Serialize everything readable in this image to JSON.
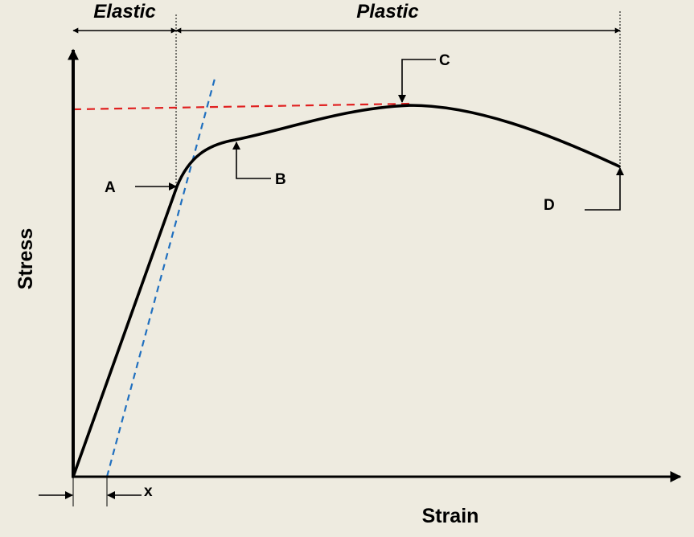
{
  "regions": {
    "elastic_label": "Elastic",
    "plastic_label": "Plastic"
  },
  "axes": {
    "y_label": "Stress",
    "x_label": "Strain"
  },
  "points": {
    "a": "A",
    "b": "B",
    "c": "C",
    "d": "D"
  },
  "offset_label": "x",
  "colors": {
    "background": "#EEEBE0",
    "curve": "#000000",
    "offset_line": "#1F6FBF",
    "max_stress_line": "#E02020"
  }
}
